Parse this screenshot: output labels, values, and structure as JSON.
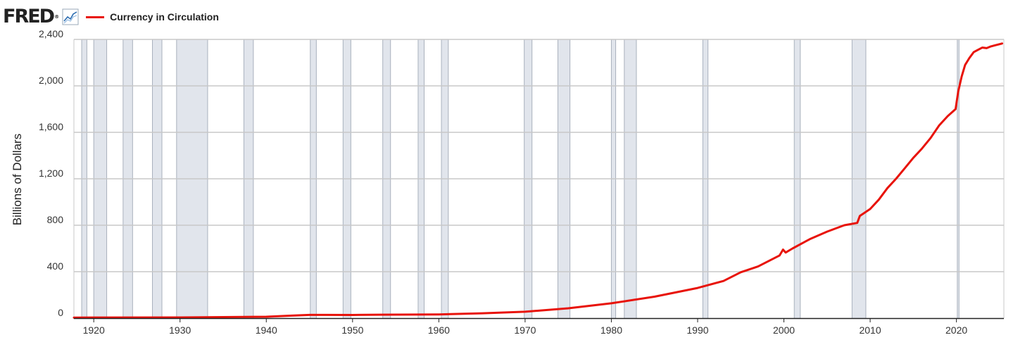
{
  "header": {
    "logo_text": "FRED",
    "logo_mark": "®",
    "logo_icon": "line-graph-icon"
  },
  "colors": {
    "series": "#e8130a",
    "grid": "#c8c8c8",
    "recession": "#e1e5ec",
    "axis": "#222222"
  },
  "chart_data": {
    "type": "line",
    "title": "",
    "xlabel": "",
    "ylabel": "Billions of Dollars",
    "xlim": [
      1917.7,
      2025.5
    ],
    "ylim": [
      0,
      2400
    ],
    "x_ticks": [
      "1920",
      "1930",
      "1940",
      "1950",
      "1960",
      "1970",
      "1980",
      "1990",
      "2000",
      "2010",
      "2020"
    ],
    "y_ticks": [
      "0",
      "400",
      "800",
      "1,200",
      "1,600",
      "2,000",
      "2,400"
    ],
    "grid": true,
    "legend_position": "top-left",
    "recessions": [
      [
        1918.6,
        1919.2
      ],
      [
        1920.0,
        1921.5
      ],
      [
        1923.4,
        1924.5
      ],
      [
        1926.8,
        1927.9
      ],
      [
        1929.6,
        1933.2
      ],
      [
        1937.4,
        1938.5
      ],
      [
        1945.1,
        1945.8
      ],
      [
        1948.9,
        1949.8
      ],
      [
        1953.5,
        1954.4
      ],
      [
        1957.6,
        1958.3
      ],
      [
        1960.3,
        1961.1
      ],
      [
        1969.9,
        1970.8
      ],
      [
        1973.8,
        1975.2
      ],
      [
        1980.0,
        1980.5
      ],
      [
        1981.5,
        1982.9
      ],
      [
        1990.6,
        1991.2
      ],
      [
        2001.2,
        2001.9
      ],
      [
        2007.9,
        2009.5
      ],
      [
        2020.1,
        2020.3
      ]
    ],
    "series": [
      {
        "name": "Currency in Circulation",
        "x": [
          1917.7,
          1930,
          1940,
          1943,
          1945,
          1947,
          1950,
          1953,
          1960,
          1965,
          1970,
          1975,
          1980,
          1985,
          1990,
          1993,
          1995,
          1997,
          1999.5,
          1999.9,
          2000.2,
          2001,
          2003,
          2005,
          2007,
          2008.5,
          2008.8,
          2009.2,
          2010,
          2011,
          2012,
          2013,
          2014,
          2015,
          2016,
          2017,
          2018,
          2019,
          2019.9,
          2020.2,
          2020.6,
          2021,
          2021.5,
          2022,
          2022.5,
          2023,
          2023.5,
          2024,
          2024.5,
          2025.3
        ],
        "values": [
          5,
          6,
          12,
          22,
          28,
          28,
          27,
          30,
          32,
          42,
          55,
          85,
          128,
          185,
          260,
          320,
          395,
          445,
          540,
          590,
          565,
          600,
          680,
          745,
          800,
          820,
          880,
          900,
          940,
          1020,
          1120,
          1200,
          1290,
          1380,
          1460,
          1550,
          1660,
          1740,
          1800,
          1950,
          2080,
          2180,
          2240,
          2290,
          2310,
          2330,
          2325,
          2340,
          2350,
          2365
        ]
      }
    ]
  }
}
